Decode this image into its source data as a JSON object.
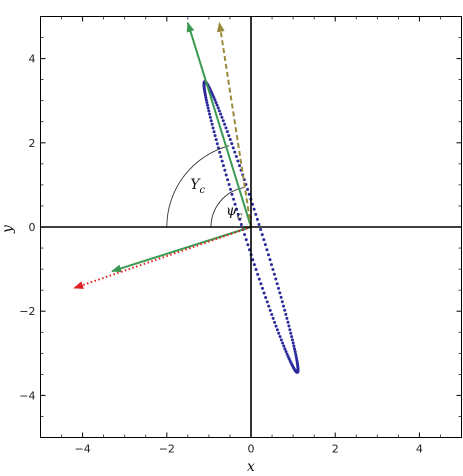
{
  "chart_data": {
    "type": "scatter",
    "title": "",
    "xlabel": "x",
    "ylabel": "y",
    "xlim": [
      -5,
      5
    ],
    "ylim": [
      -5,
      5
    ],
    "grid": false,
    "x_ticks": [
      -4,
      -2,
      0,
      2,
      4
    ],
    "y_ticks": [
      -4,
      -2,
      0,
      2,
      4
    ],
    "x_tick_labels": [
      "−4",
      "−2",
      "0",
      "2",
      "4"
    ],
    "y_tick_labels": [
      "−4",
      "−2",
      "0",
      "2",
      "4"
    ],
    "ellipse": {
      "style": "dotted",
      "color": "#2b2b9c",
      "center": [
        0,
        0
      ],
      "tips": [
        [
          -1.1,
          3.45
        ],
        [
          1.1,
          -3.45
        ]
      ],
      "minor_half_width": 0.2,
      "point_count": 180
    },
    "vectors": [
      {
        "style": "solid",
        "color": "#3a9a52",
        "from": [
          0,
          0
        ],
        "to": [
          -1.5,
          4.85
        ]
      },
      {
        "style": "dashed",
        "color": "#9a8a3a",
        "from": [
          0,
          0
        ],
        "to": [
          -0.75,
          4.85
        ]
      },
      {
        "style": "solid",
        "color": "#3a9a52",
        "from": [
          0,
          0
        ],
        "to": [
          -3.3,
          -1.05
        ]
      },
      {
        "style": "dotted",
        "color": "#e02020",
        "from": [
          0,
          0
        ],
        "to": [
          -4.2,
          -1.45
        ]
      }
    ],
    "angle_arcs": [
      {
        "label": "Υ",
        "subscript": "c",
        "radius": 2.0,
        "start_deg": 105,
        "end_deg": 180
      },
      {
        "label": "ψ",
        "subscript": "c",
        "radius": 0.95,
        "start_deg": 100,
        "end_deg": 180
      }
    ]
  }
}
